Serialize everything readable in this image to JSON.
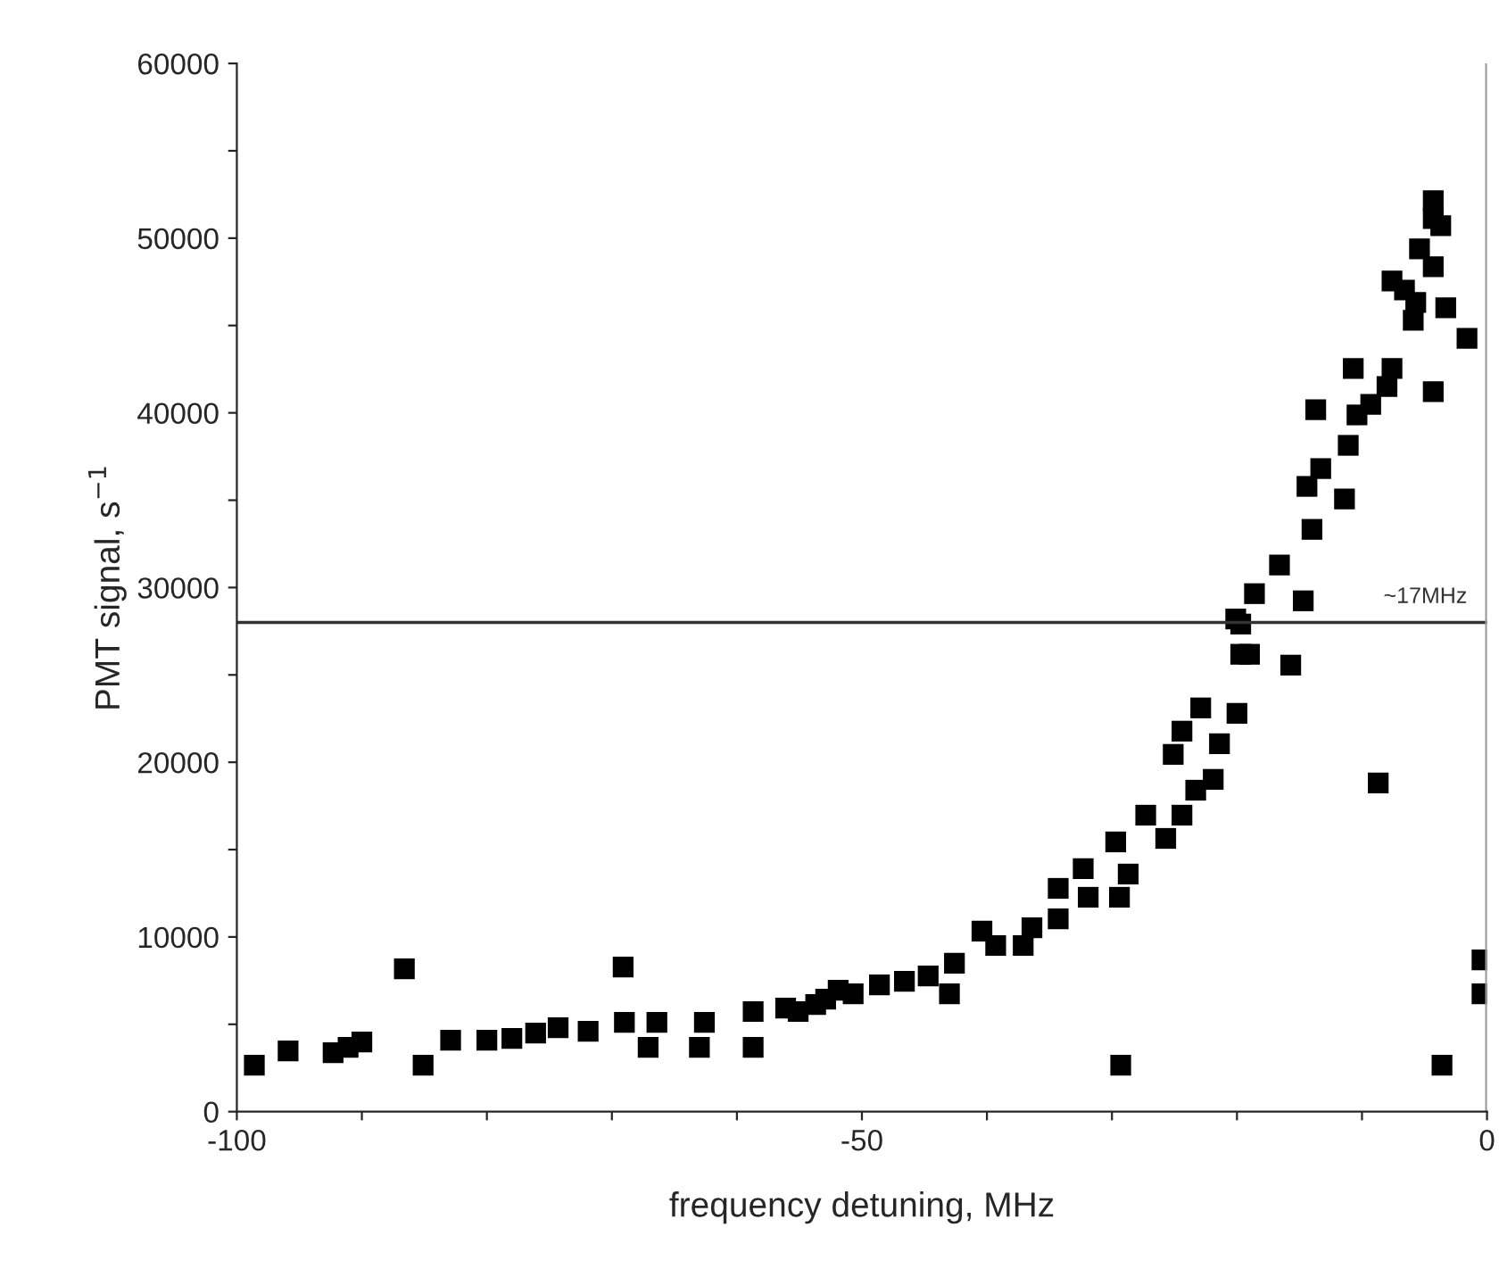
{
  "chart_data": {
    "type": "scatter",
    "xlabel": "frequency detuning, MHz",
    "ylabel": "PMT signal, s$^{−1}$",
    "x": [
      -98.6,
      -95.9,
      -92.3,
      -91.1,
      -90,
      -86.6,
      -85.1,
      -82.9,
      -80,
      -78,
      -76.1,
      -74.3,
      -71.9,
      -69.1,
      -69,
      -67.1,
      -66.4,
      -63,
      -62.6,
      -58.7,
      -58.7,
      -56.1,
      -53.7,
      -51.9,
      -55.1,
      -52.9,
      -50.7,
      -48.6,
      -46.6,
      -44.7,
      -43,
      -42.6,
      -40.4,
      -39.3,
      -37.1,
      -36.4,
      -34.3,
      -34.3,
      -32.3,
      -31.9,
      -29.4,
      -29.3,
      -29.7,
      -28.7,
      -27.3,
      -25.7,
      -24.4,
      -23.3,
      -21.9,
      -25.1,
      -22.9,
      -24.4,
      -21.4,
      -20,
      -19.7,
      -19.7,
      -20.1,
      -18.6,
      -16.6,
      -14.7,
      -19,
      -15.7,
      -14,
      -14.4,
      -13.3,
      -11.4,
      -11.1,
      -13.7,
      -10.4,
      -9.3,
      -10.7,
      -7.6,
      -8,
      -4.3,
      -7.6,
      -6.6,
      -5.7,
      -5.9,
      -3.3,
      -1.6,
      -5.4,
      -4.3,
      -4.3,
      -4.3,
      -3.7,
      -8.7,
      -3.6,
      -0.4,
      -0.4
    ],
    "values": [
      2660,
      3480,
      3370,
      3680,
      3990,
      8180,
      2660,
      4090,
      4090,
      4190,
      4500,
      4810,
      4600,
      8280,
      5110,
      3680,
      5110,
      3680,
      5110,
      3680,
      5730,
      5930,
      6130,
      6950,
      5730,
      6440,
      6750,
      7260,
      7460,
      7770,
      6750,
      8490,
      10330,
      9510,
      9510,
      10530,
      11040,
      12780,
      13910,
      12270,
      12270,
      2660,
      15440,
      13600,
      16970,
      15640,
      16970,
      18400,
      19020,
      20450,
      23110,
      21780,
      21060,
      22800,
      27910,
      26180,
      28200,
      29650,
      31290,
      29240,
      26180,
      25560,
      33330,
      35790,
      36810,
      35070,
      38140,
      40180,
      39880,
      40490,
      42540,
      42540,
      41510,
      41210,
      47550,
      47030,
      46320,
      45300,
      46010,
      44270,
      49390,
      48360,
      51120,
      52150,
      50720,
      18810,
      2660,
      8690,
      6750
    ],
    "color": "#000000",
    "marker": "square",
    "xlim": [
      -100,
      0
    ],
    "ylim": [
      0,
      60000
    ],
    "xticks": [
      -100,
      {
        "value": -90,
        "label": null
      },
      {
        "value": -80,
        "label": null
      },
      {
        "value": -70,
        "label": null
      },
      {
        "value": -60,
        "label": null
      },
      -50,
      {
        "value": -40,
        "label": null
      },
      {
        "value": -30,
        "label": null
      },
      {
        "value": -20,
        "label": null
      },
      {
        "value": -10,
        "label": null
      },
      0
    ],
    "yticks": [
      0,
      {
        "value": 5000,
        "label": null
      },
      10000,
      {
        "value": 15000,
        "label": null
      },
      20000,
      {
        "value": 25000,
        "label": null
      },
      30000,
      {
        "value": 35000,
        "label": null
      },
      40000,
      {
        "value": 45000,
        "label": null
      },
      50000,
      {
        "value": 55000,
        "label": null
      },
      60000
    ],
    "ref_lines": [
      {
        "axis": "y",
        "value": 28000,
        "label": "~17MHz",
        "color": "#333333"
      },
      {
        "axis": "x",
        "value": 0,
        "color": "#999999"
      }
    ],
    "grid": false,
    "legend": false
  }
}
